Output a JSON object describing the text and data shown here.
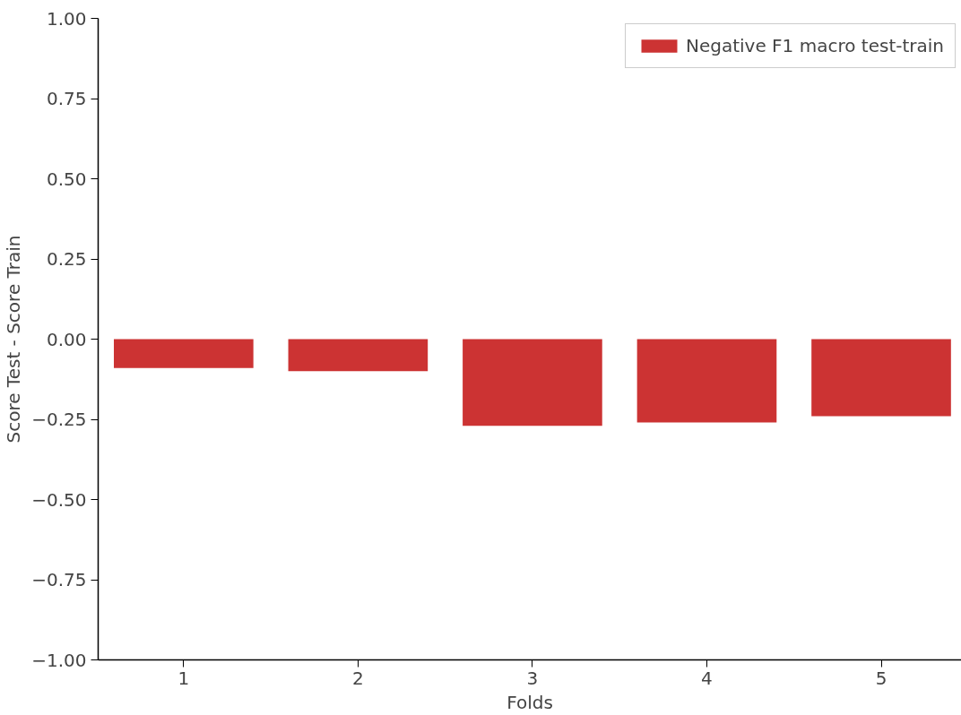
{
  "chart_data": {
    "type": "bar",
    "xlabel": "Folds",
    "ylabel": "Score Test - Score Train",
    "categories": [
      "1",
      "2",
      "3",
      "4",
      "5"
    ],
    "series": [
      {
        "name": "Negative F1 macro test-train",
        "color": "#cc3333",
        "values": [
          -0.09,
          -0.1,
          -0.27,
          -0.26,
          -0.24
        ]
      }
    ],
    "ylim": [
      -1.0,
      1.0
    ],
    "yticks": [
      {
        "value": -1.0,
        "label": "−1.00"
      },
      {
        "value": -0.75,
        "label": "−0.75"
      },
      {
        "value": -0.5,
        "label": "−0.50"
      },
      {
        "value": -0.25,
        "label": "−0.25"
      },
      {
        "value": 0.0,
        "label": "0.00"
      },
      {
        "value": 0.25,
        "label": "0.25"
      },
      {
        "value": 0.5,
        "label": "0.50"
      },
      {
        "value": 0.75,
        "label": "0.75"
      },
      {
        "value": 1.0,
        "label": "1.00"
      }
    ],
    "grid": false,
    "legend": "top right"
  }
}
